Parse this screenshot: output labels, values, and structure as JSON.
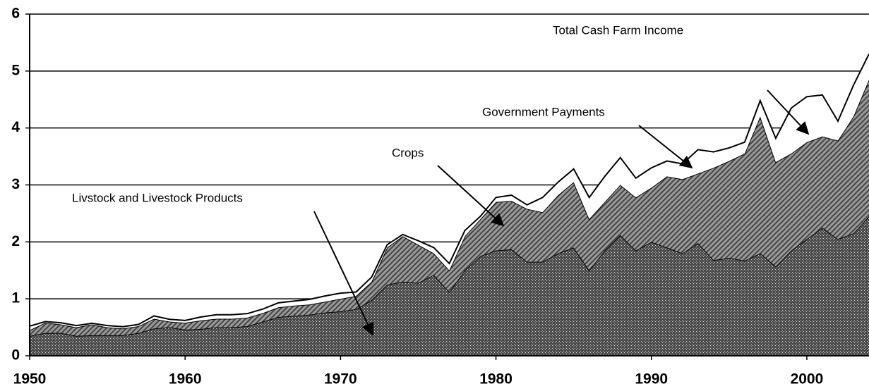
{
  "chart_data": {
    "type": "stacked_area",
    "annotations": [
      "Total Cash Farm Income",
      "Government Payments",
      "Crops",
      "Livstock and Livestock Products"
    ],
    "x": [
      1950,
      1951,
      1952,
      1953,
      1954,
      1955,
      1956,
      1957,
      1958,
      1959,
      1960,
      1961,
      1962,
      1963,
      1964,
      1965,
      1966,
      1967,
      1968,
      1969,
      1970,
      1971,
      1972,
      1973,
      1974,
      1975,
      1976,
      1977,
      1978,
      1979,
      1980,
      1981,
      1982,
      1983,
      1984,
      1985,
      1986,
      1987,
      1988,
      1989,
      1990,
      1991,
      1992,
      1993,
      1994,
      1995,
      1996,
      1997,
      1998,
      1999,
      2000,
      2001,
      2002,
      2003,
      2004
    ],
    "series": [
      {
        "name": "Livstock and Livestock Products",
        "color": "#4a4a4a",
        "values": [
          0.35,
          0.4,
          0.4,
          0.35,
          0.36,
          0.36,
          0.36,
          0.4,
          0.48,
          0.5,
          0.46,
          0.47,
          0.5,
          0.5,
          0.52,
          0.6,
          0.68,
          0.7,
          0.72,
          0.76,
          0.78,
          0.82,
          0.98,
          1.25,
          1.3,
          1.28,
          1.42,
          1.12,
          1.5,
          1.75,
          1.85,
          1.87,
          1.65,
          1.65,
          1.8,
          1.9,
          1.5,
          1.85,
          2.12,
          1.85,
          2.0,
          1.9,
          1.8,
          1.98,
          1.68,
          1.72,
          1.67,
          1.8,
          1.57,
          1.85,
          2.05,
          2.25,
          2.05,
          2.15,
          2.45
        ]
      },
      {
        "name": "Crops",
        "color": "#9a9a9a",
        "values": [
          0.1,
          0.18,
          0.15,
          0.15,
          0.19,
          0.14,
          0.12,
          0.12,
          0.17,
          0.1,
          0.12,
          0.15,
          0.15,
          0.15,
          0.15,
          0.15,
          0.17,
          0.18,
          0.18,
          0.19,
          0.22,
          0.23,
          0.32,
          0.65,
          0.8,
          0.67,
          0.38,
          0.38,
          0.6,
          0.65,
          0.85,
          0.85,
          0.93,
          0.87,
          1.02,
          1.15,
          0.9,
          0.85,
          0.88,
          0.93,
          0.95,
          1.25,
          1.3,
          1.22,
          1.62,
          1.7,
          1.88,
          2.4,
          1.83,
          1.7,
          1.7,
          1.6,
          1.73,
          2.05,
          2.4
        ]
      },
      {
        "name": "Government Payments",
        "color": "#ffffff",
        "values": [
          0.07,
          0.02,
          0.03,
          0.03,
          0.02,
          0.03,
          0.03,
          0.03,
          0.05,
          0.04,
          0.04,
          0.06,
          0.07,
          0.07,
          0.07,
          0.07,
          0.08,
          0.08,
          0.09,
          0.1,
          0.1,
          0.07,
          0.08,
          0.05,
          0.03,
          0.07,
          0.1,
          0.12,
          0.1,
          0.05,
          0.08,
          0.1,
          0.07,
          0.26,
          0.23,
          0.23,
          0.38,
          0.45,
          0.48,
          0.34,
          0.35,
          0.27,
          0.27,
          0.42,
          0.28,
          0.23,
          0.2,
          0.28,
          0.42,
          0.8,
          0.8,
          0.73,
          0.34,
          0.55,
          0.45
        ]
      }
    ],
    "xlim": [
      1950,
      2004
    ],
    "xticks": [
      1950,
      1960,
      1970,
      1980,
      1990,
      2000
    ],
    "ylim": [
      0,
      6
    ],
    "yticks": [
      0,
      1,
      2,
      3,
      4,
      5,
      6
    ],
    "grid": true
  }
}
